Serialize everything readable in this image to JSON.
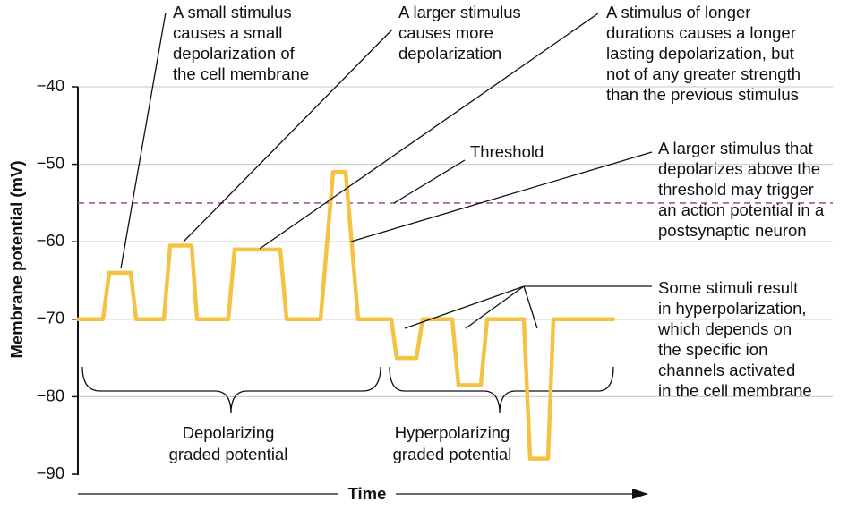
{
  "chart_data": {
    "type": "line",
    "y_label": "Membrane potential (mV)",
    "x_label": "Time",
    "ylim": [
      -90,
      -40
    ],
    "yticks": [
      {
        "value": -40,
        "label": "−40"
      },
      {
        "value": -50,
        "label": "−50"
      },
      {
        "value": -60,
        "label": "−60"
      },
      {
        "value": -70,
        "label": "−70"
      },
      {
        "value": -80,
        "label": "−80"
      },
      {
        "value": -90,
        "label": "−90"
      }
    ],
    "xlim": [
      0,
      640
    ],
    "x": [
      0,
      28,
      35,
      59,
      65,
      96,
      103,
      127,
      133,
      168,
      175,
      226,
      233,
      271,
      285,
      299,
      313,
      350,
      356,
      378,
      385,
      418,
      425,
      450,
      457,
      498,
      505,
      525,
      531,
      598
    ],
    "values": [
      -70,
      -70,
      -64,
      -64,
      -70,
      -70,
      -60.5,
      -60.5,
      -70,
      -70,
      -61,
      -61,
      -70,
      -70,
      -51,
      -51,
      -70,
      -70,
      -75,
      -75,
      -70,
      -70,
      -78.5,
      -78.5,
      -70,
      -70,
      -88,
      -88,
      -70,
      -70
    ],
    "color": "#f5c343",
    "threshold": -55,
    "threshold_color": "#a0589c",
    "grid": true,
    "annotations": [
      [
        "A small stimulus",
        "causes a small",
        "depolarization of",
        "the cell membrane"
      ],
      [
        "A larger stimulus",
        "causes more",
        "depolarization"
      ],
      [
        "A stimulus of longer",
        "durations causes a longer",
        "lasting depolarization, but",
        "not of any greater strength",
        "than the previous stimulus"
      ],
      [
        "Threshold"
      ],
      [
        "A larger stimulus that",
        "depolarizes above the",
        "threshold may trigger",
        "an action potential in a",
        "postsynaptic neuron"
      ],
      [
        "Some stimuli result",
        "in hyperpolarization,",
        "which depends on",
        "the specific ion",
        "channels activated",
        "in the cell membrane"
      ]
    ],
    "group_labels": [
      [
        "Depolarizing",
        "graded potential"
      ],
      [
        "Hyperpolarizing",
        "graded potential"
      ]
    ]
  }
}
